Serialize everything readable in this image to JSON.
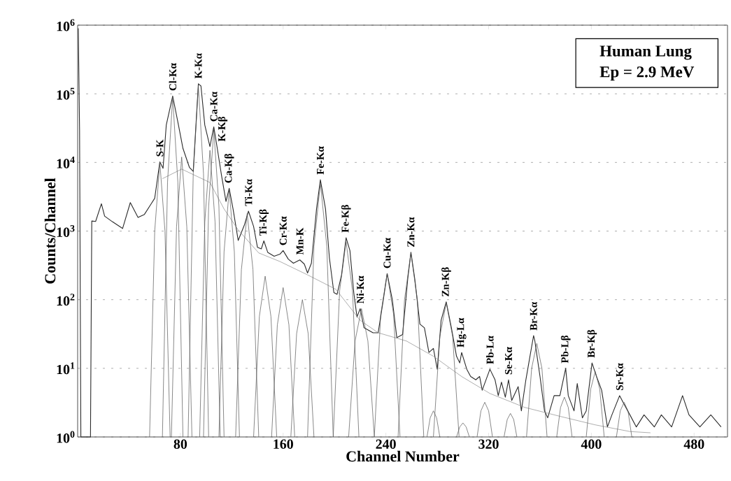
{
  "chart_data": {
    "type": "line",
    "xlabel": "Channel Number",
    "ylabel": "Counts/Channel",
    "xlim": [
      0,
      506
    ],
    "ylim": [
      1,
      1000000
    ],
    "log": "y",
    "grid": "y",
    "marker": "none",
    "line_style": "solid",
    "xticks": [
      80,
      160,
      240,
      320,
      400,
      480
    ],
    "yticks": [
      {
        "value": 1,
        "label": "10$^{0}$"
      },
      {
        "value": 10,
        "label": "10$^{1}$"
      },
      {
        "value": 100,
        "label": "10$^{2}$"
      },
      {
        "value": 1000,
        "label": "10$^{3}$"
      },
      {
        "value": 10000,
        "label": "10$^{4}$"
      },
      {
        "value": 100000,
        "label": "10$^{5}$"
      },
      {
        "value": 1000000,
        "label": "10$^{6}$"
      }
    ],
    "series": [
      {
        "color": "#2a2a2a",
        "x": [
          0.5,
          1.5,
          2.5,
          10,
          11,
          14,
          18.5,
          21,
          27,
          35,
          41,
          47,
          52,
          57,
          60,
          64,
          66.5,
          69,
          74,
          78.5,
          82,
          87,
          90,
          94,
          96,
          99,
          103,
          106,
          108.5,
          112,
          115.5,
          118,
          121,
          125,
          130,
          133,
          137,
          140,
          143,
          145,
          148,
          153,
          157.5,
          160,
          164,
          168,
          173,
          176.5,
          179,
          182,
          186,
          189,
          193,
          196,
          199.5,
          202,
          205.5,
          209,
          212,
          215,
          217.5,
          220,
          223,
          230,
          234,
          238,
          241,
          245,
          248.5,
          253,
          257,
          259.5,
          262.5,
          266.5,
          270,
          273.5,
          277,
          280,
          283,
          287,
          291,
          295,
          297.5,
          299,
          303,
          306,
          310,
          313,
          315,
          321,
          325,
          327.5,
          330,
          333,
          335.5,
          338,
          343,
          345.5,
          349,
          355,
          356,
          360,
          363.5,
          366,
          371,
          375.5,
          380,
          382,
          386.5,
          389,
          393,
          396,
          400.5,
          404,
          408,
          412.5,
          416,
          422,
          425.5,
          430,
          435,
          441,
          449,
          454.5,
          462.5,
          471,
          476,
          484.5,
          493,
          501
        ],
        "values": [
          900000,
          30000,
          1,
          1,
          1400,
          1380,
          2500,
          1650,
          1370,
          1090,
          2600,
          1580,
          1750,
          2450,
          3000,
          10200,
          8200,
          35000,
          93000,
          35000,
          16000,
          8500,
          7400,
          140000,
          130000,
          35000,
          17000,
          33000,
          17000,
          6500,
          2700,
          4200,
          2100,
          730,
          1250,
          1950,
          1170,
          580,
          550,
          720,
          490,
          430,
          460,
          520,
          390,
          340,
          380,
          330,
          245,
          340,
          2100,
          5600,
          2100,
          410,
          127,
          120,
          230,
          800,
          520,
          127,
          56,
          74,
          39,
          33,
          33,
          100,
          240,
          100,
          28,
          31,
          200,
          490,
          200,
          44,
          39,
          17,
          19.5,
          9.7,
          50,
          93,
          39,
          15,
          12,
          17,
          9.7,
          7.6,
          6.8,
          7.6,
          4.8,
          9.7,
          6.8,
          4,
          6.3,
          3.8,
          6.8,
          3.4,
          5.4,
          2.4,
          6.8,
          30,
          25,
          7.6,
          2.4,
          1.9,
          4,
          4,
          10,
          4,
          2.4,
          6,
          1.9,
          2.4,
          12,
          7.6,
          4.8,
          1.4,
          2.1,
          4,
          3,
          2.1,
          1.4,
          2.1,
          1.4,
          2.1,
          1.4,
          4,
          2.1,
          1.4,
          2.1,
          1.4
        ]
      },
      {
        "color": "#8a8a8a",
        "x": [
          66,
          81,
          103,
          114,
          125,
          141,
          157.5,
          179,
          201,
          220,
          234,
          256,
          277,
          299,
          321,
          348,
          375.5,
          403,
          430,
          446
        ],
        "values": [
          5800,
          8000,
          5100,
          2100,
          1040,
          480,
          360,
          230,
          142,
          50,
          33,
          25,
          15,
          7.6,
          4.3,
          2.7,
          2,
          1.5,
          1.2,
          1.15
        ]
      },
      {
        "color": "#555555",
        "x": [
          56,
          60,
          64,
          68,
          72
        ],
        "values": [
          1,
          1000,
          10000,
          1000,
          1
        ]
      },
      {
        "color": "#555555",
        "x": [
          66,
          70,
          74,
          78,
          82
        ],
        "values": [
          1,
          5200,
          90000,
          5200,
          1
        ]
      },
      {
        "color": "#555555",
        "x": [
          73,
          77,
          81,
          85,
          89
        ],
        "values": [
          1,
          1150,
          12000,
          1150,
          1
        ]
      },
      {
        "color": "#555555",
        "x": [
          86,
          90,
          94,
          98,
          102
        ],
        "values": [
          1,
          6800,
          130000,
          6800,
          1
        ]
      },
      {
        "color": "#555555",
        "x": [
          95,
          99,
          103,
          107,
          111
        ],
        "values": [
          1,
          1350,
          15000,
          1350,
          1
        ]
      },
      {
        "color": "#555555",
        "x": [
          98,
          102,
          106,
          110,
          114
        ],
        "values": [
          1,
          2300,
          30000,
          2300,
          1
        ]
      },
      {
        "color": "#555555",
        "x": [
          110,
          114,
          118,
          122,
          126
        ],
        "values": [
          1,
          500,
          4000,
          500,
          1
        ]
      },
      {
        "color": "#555555",
        "x": [
          123,
          127.5,
          132,
          136.5,
          141
        ],
        "values": [
          1,
          275,
          1800,
          275,
          1
        ]
      },
      {
        "color": "#555555",
        "x": [
          137,
          141.5,
          146,
          150.5,
          155
        ],
        "values": [
          1,
          57,
          220,
          57,
          1
        ]
      },
      {
        "color": "#555555",
        "x": [
          151,
          155.5,
          160,
          164.5,
          169
        ],
        "values": [
          1,
          43,
          150,
          43,
          1
        ]
      },
      {
        "color": "#555555",
        "x": [
          166,
          170.5,
          175,
          179.5,
          184
        ],
        "values": [
          1,
          32,
          100,
          32,
          1
        ]
      },
      {
        "color": "#555555",
        "x": [
          179,
          184,
          189,
          194,
          199
        ],
        "values": [
          1,
          600,
          5000,
          600,
          1
        ]
      },
      {
        "color": "#555555",
        "x": [
          199,
          204,
          209,
          214,
          219
        ],
        "values": [
          1,
          135,
          700,
          135,
          1
        ]
      },
      {
        "color": "#555555",
        "x": [
          211,
          216,
          221,
          226,
          231
        ],
        "values": [
          1,
          25,
          74,
          25,
          1
        ]
      },
      {
        "color": "#555555",
        "x": [
          231,
          236,
          241,
          246,
          251
        ],
        "values": [
          1,
          61,
          240,
          61,
          1
        ]
      },
      {
        "color": "#555555",
        "x": [
          249.5,
          254.5,
          259.5,
          264.5,
          269.5
        ],
        "values": [
          1,
          100,
          480,
          100,
          1
        ]
      },
      {
        "color": "#555555",
        "x": [
          277,
          282,
          287,
          292,
          297
        ],
        "values": [
          1,
          29,
          90,
          29,
          1
        ]
      },
      {
        "color": "#555555",
        "x": [
          272,
          274.5,
          277,
          279.5,
          282
        ],
        "values": [
          1,
          1.9,
          2.4,
          1.9,
          1
        ]
      },
      {
        "color": "#555555",
        "x": [
          295,
          297.5,
          300,
          302.5,
          305
        ],
        "values": [
          1,
          1.4,
          1.6,
          1.4,
          1
        ]
      },
      {
        "color": "#555555",
        "x": [
          311,
          314,
          317,
          320,
          323
        ],
        "values": [
          1,
          2.4,
          3.2,
          2.4,
          1
        ]
      },
      {
        "color": "#555555",
        "x": [
          332,
          334.5,
          337,
          339.5,
          342
        ],
        "values": [
          1,
          1.8,
          2.2,
          1.8,
          1
        ]
      },
      {
        "color": "#555555",
        "x": [
          349.5,
          353.5,
          357.5,
          361.5,
          365.5
        ],
        "values": [
          1,
          10,
          23,
          10,
          1
        ]
      },
      {
        "color": "#555555",
        "x": [
          373,
          376,
          379,
          382,
          385
        ],
        "values": [
          1,
          2.7,
          3.8,
          2.7,
          1
        ]
      },
      {
        "color": "#555555",
        "x": [
          396,
          399.5,
          403,
          406.5,
          410
        ],
        "values": [
          1,
          5,
          9,
          5,
          1
        ]
      },
      {
        "color": "#555555",
        "x": [
          419.5,
          422.5,
          425.5,
          428.5,
          431.5
        ],
        "values": [
          1,
          2.4,
          3.2,
          2.4,
          1
        ]
      }
    ],
    "annotations": [
      "Human Lung",
      "Ep = 2.9 MeV",
      {
        "text": "S-K",
        "x": 64,
        "y": 10200
      },
      {
        "text": "Cl-Kα",
        "x": 74,
        "y": 93000
      },
      {
        "text": "K-Kα",
        "x": 94,
        "y": 140000
      },
      {
        "text": "K-Kβ",
        "x": 108.5,
        "y": 17000
      },
      {
        "text": "Ca-Kα",
        "x": 106,
        "y": 33000
      },
      {
        "text": "Ca-Kβ",
        "x": 118,
        "y": 4200
      },
      {
        "text": "Ti-Kα",
        "x": 133,
        "y": 1950
      },
      {
        "text": "Ti-Kβ",
        "x": 145,
        "y": 720
      },
      {
        "text": "Cr-Kα",
        "x": 160,
        "y": 520
      },
      {
        "text": "Mn-K",
        "x": 173,
        "y": 380
      },
      {
        "text": "Fe-Kα",
        "x": 189,
        "y": 5600
      },
      {
        "text": "Fe-Kβ",
        "x": 209,
        "y": 800
      },
      {
        "text": "Ni-Kα",
        "x": 220,
        "y": 74
      },
      {
        "text": "Cu-Kα",
        "x": 241,
        "y": 240
      },
      {
        "text": "Zn-Kα",
        "x": 259.5,
        "y": 490
      },
      {
        "text": "Zn-Kβ",
        "x": 287,
        "y": 93
      },
      {
        "text": "Hg-Lα",
        "x": 299,
        "y": 17
      },
      {
        "text": "Pb-Lα",
        "x": 321,
        "y": 9.7
      },
      {
        "text": "Se-Kα",
        "x": 335.5,
        "y": 6.8
      },
      {
        "text": "Br-Kα",
        "x": 355,
        "y": 30
      },
      {
        "text": "Pb-Lβ",
        "x": 380,
        "y": 10
      },
      {
        "text": "Br-Kβ",
        "x": 400.5,
        "y": 12
      },
      {
        "text": "Sr-Kα",
        "x": 422,
        "y": 4
      }
    ]
  }
}
